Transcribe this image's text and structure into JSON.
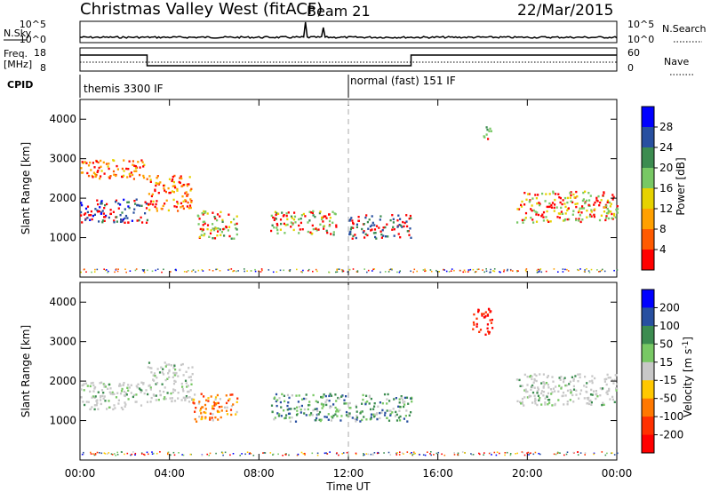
{
  "header": {
    "station": "Christmas Valley West (fitACF)",
    "beam": "Beam 21",
    "date": "22/Mar/2015"
  },
  "top_panels": {
    "nsky_label": "N.Sky",
    "nsky_ticks_left": [
      "10^5",
      "10^0"
    ],
    "nsky_ticks_right": [
      "10^5",
      "10^0"
    ],
    "nsearch_label": "N.Search",
    "freq_label_line1": "Freq.",
    "freq_label_line2": "[MHz]",
    "freq_ticks": [
      "18",
      "8"
    ],
    "nave_ticks": [
      "60",
      "0"
    ],
    "nave_label": "Nave",
    "cpid_label": "CPID",
    "cpid_modes": [
      {
        "label": "themis 3300 IF",
        "start_hour": 0,
        "end_hour": 12
      },
      {
        "label": "normal (fast) 151 IF",
        "start_hour": 12,
        "end_hour": 24
      }
    ]
  },
  "chart_data": [
    {
      "type": "heatmap",
      "name": "power",
      "ylabel": "Slant Range [km]",
      "yticks": [
        "1000",
        "2000",
        "3000",
        "4000"
      ],
      "ylim": [
        0,
        4500
      ],
      "xlim": [
        0,
        24
      ],
      "colorbar": {
        "label": "Power [dB]",
        "ticks": [
          "4",
          "8",
          "12",
          "16",
          "20",
          "24",
          "28"
        ],
        "colors": [
          "#0000ff",
          "#2850a0",
          "#3c8c50",
          "#78c864",
          "#e6d200",
          "#ffa000",
          "#ff5a00",
          "#ff0000"
        ]
      },
      "echo_regions": [
        {
          "t0": 0.0,
          "t1": 3.0,
          "r0": 1400,
          "r1": 2000,
          "level": 22
        },
        {
          "t0": 0.0,
          "t1": 3.0,
          "r0": 2500,
          "r1": 3000,
          "level": 6
        },
        {
          "t0": 3.0,
          "t1": 5.0,
          "r0": 1700,
          "r1": 2600,
          "level": 6
        },
        {
          "t0": 5.2,
          "t1": 7.0,
          "r0": 1000,
          "r1": 1700,
          "level": 14
        },
        {
          "t0": 8.5,
          "t1": 11.5,
          "r0": 1100,
          "r1": 1700,
          "level": 14
        },
        {
          "t0": 12.0,
          "t1": 14.8,
          "r0": 1000,
          "r1": 1600,
          "level": 20
        },
        {
          "t0": 18.0,
          "t1": 18.4,
          "r0": 3500,
          "r1": 3900,
          "level": 14
        },
        {
          "t0": 19.5,
          "t1": 24.0,
          "r0": 1400,
          "r1": 2200,
          "level": 12
        }
      ]
    },
    {
      "type": "heatmap",
      "name": "velocity",
      "ylabel": "Slant Range [km]",
      "yticks": [
        "1000",
        "2000",
        "3000",
        "4000"
      ],
      "ylim": [
        0,
        4500
      ],
      "xlim": [
        0,
        24
      ],
      "xlabel": "Time UT",
      "xticks": [
        "00:00",
        "04:00",
        "08:00",
        "12:00",
        "16:00",
        "20:00",
        "00:00"
      ],
      "colorbar": {
        "label": "Velocity [m s",
        "label_sup": "-1",
        "label_end": "]",
        "ticks": [
          "200",
          "100",
          "50",
          "15",
          "-15",
          "-50",
          "-100",
          "-200"
        ],
        "colors": [
          "#0000ff",
          "#2850a0",
          "#3c8c50",
          "#78c864",
          "#c8c8c8",
          "#ffc800",
          "#ff7800",
          "#ff3000",
          "#ff0000"
        ]
      },
      "echo_regions": [
        {
          "t0": 0.0,
          "t1": 3.0,
          "r0": 1300,
          "r1": 2000,
          "value": 0
        },
        {
          "t0": 3.0,
          "t1": 5.0,
          "r0": 1500,
          "r1": 2500,
          "value": 0
        },
        {
          "t0": 5.0,
          "t1": 7.0,
          "r0": 1000,
          "r1": 1700,
          "value": -60
        },
        {
          "t0": 8.5,
          "t1": 14.8,
          "r0": 1000,
          "r1": 1700,
          "value": 60
        },
        {
          "t0": 17.5,
          "t1": 18.4,
          "r0": 3200,
          "r1": 3900,
          "value": -200
        },
        {
          "t0": 19.5,
          "t1": 24.0,
          "r0": 1400,
          "r1": 2200,
          "value": 0
        }
      ]
    }
  ]
}
